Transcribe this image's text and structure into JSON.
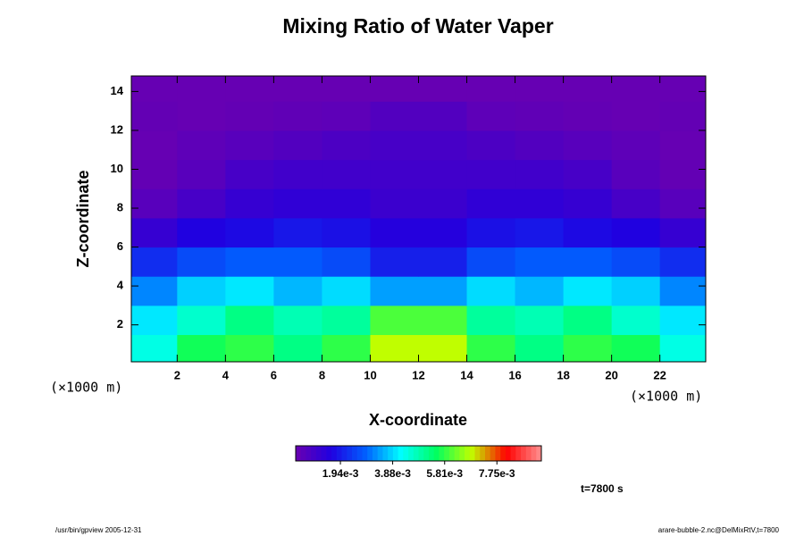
{
  "chart_data": {
    "type": "heatmap",
    "title": "Mixing Ratio of Water Vaper",
    "xlabel": "X-coordinate",
    "ylabel": "Z-coordinate",
    "x_unit": "(×1000 m)",
    "y_unit": "(×1000 m)",
    "xlim": [
      0.1,
      23.9
    ],
    "ylim": [
      0.1,
      14.8
    ],
    "xticks": [
      2,
      4,
      6,
      8,
      10,
      12,
      14,
      16,
      18,
      20,
      22
    ],
    "yticks": [
      2,
      4,
      6,
      8,
      10,
      12,
      14
    ],
    "x": [
      1,
      3,
      5,
      7,
      9,
      11,
      13,
      15,
      17,
      19,
      21,
      23
    ],
    "y": [
      0.75,
      2.25,
      3.75,
      5.25,
      6.75,
      8.25,
      9.75,
      11.25,
      12.75,
      14.25
    ],
    "z": [
      [
        0.0044,
        0.0056,
        0.0058,
        0.0052,
        0.0058,
        0.0068,
        0.0068,
        0.0058,
        0.0052,
        0.0058,
        0.0056,
        0.0044
      ],
      [
        0.004,
        0.0046,
        0.0052,
        0.0048,
        0.005,
        0.006,
        0.006,
        0.005,
        0.0048,
        0.0052,
        0.0046,
        0.004
      ],
      [
        0.0032,
        0.0038,
        0.004,
        0.0036,
        0.0039,
        0.0034,
        0.0034,
        0.0039,
        0.0036,
        0.004,
        0.0038,
        0.0032
      ],
      [
        0.0022,
        0.0026,
        0.0028,
        0.0028,
        0.0026,
        0.002,
        0.002,
        0.0026,
        0.0028,
        0.0028,
        0.0026,
        0.0022
      ],
      [
        0.0012,
        0.0016,
        0.0017,
        0.0019,
        0.0018,
        0.0015,
        0.0015,
        0.0018,
        0.0019,
        0.0017,
        0.0016,
        0.0012
      ],
      [
        0.0006,
        0.0009,
        0.0012,
        0.0013,
        0.0013,
        0.0011,
        0.0011,
        0.0013,
        0.0013,
        0.0012,
        0.0009,
        0.0006
      ],
      [
        0.0004,
        0.0006,
        0.0009,
        0.001,
        0.001,
        0.001,
        0.001,
        0.001,
        0.001,
        0.0009,
        0.0006,
        0.0004
      ],
      [
        0.00035,
        0.0005,
        0.0006,
        0.0007,
        0.0008,
        0.0009,
        0.0009,
        0.0008,
        0.0007,
        0.0006,
        0.0005,
        0.00035
      ],
      [
        0.0004,
        0.00035,
        0.0004,
        0.00045,
        0.0005,
        0.0007,
        0.0007,
        0.0005,
        0.00045,
        0.0004,
        0.00035,
        0.0004
      ],
      [
        0.00035,
        0.00035,
        0.00035,
        0.00035,
        0.00035,
        0.00035,
        0.00035,
        0.00035,
        0.00035,
        0.00035,
        0.00035,
        0.00035
      ]
    ],
    "colormap": [
      "#6a00b0",
      "#2000e0",
      "#0060ff",
      "#00ffff",
      "#00ff60",
      "#c0ff00",
      "#ff0000",
      "#ff9090"
    ],
    "clim": [
      0.00028,
      0.0094
    ],
    "cticks": [
      {
        "value": 0.00194,
        "label": "1.94e-3"
      },
      {
        "value": 0.00388,
        "label": "3.88e-3"
      },
      {
        "value": 0.00581,
        "label": "5.81e-3"
      },
      {
        "value": 0.00775,
        "label": "7.75e-3"
      }
    ],
    "annotation": "t=7800 s",
    "footer_left": "/usr/bin/gpview 2005-12-31",
    "footer_right": "arare-bubble-2.nc@DelMixRtV,t=7800"
  }
}
